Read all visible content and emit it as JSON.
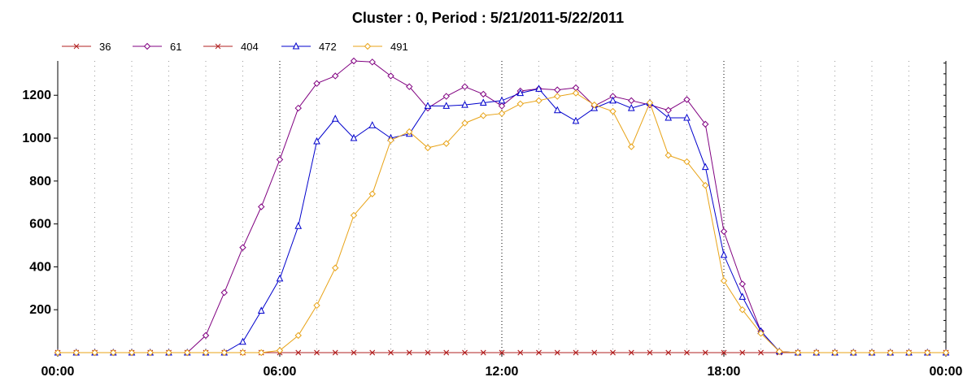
{
  "chart_data": {
    "type": "line",
    "title": "Cluster : 0, Period : 5/21/2011-5/22/2011",
    "xlabel": "",
    "ylabel": "",
    "x_tick_labels": [
      "00:00",
      "06:00",
      "12:00",
      "18:00",
      "00:00"
    ],
    "x_ticks_hours": [
      0,
      6,
      12,
      18,
      24
    ],
    "y_ticks": [
      200,
      400,
      600,
      800,
      1000,
      1200
    ],
    "xlim": [
      0,
      24
    ],
    "ylim": [
      0,
      1360
    ],
    "grid": "dotted vertical every hour",
    "legend_position": "top-left",
    "series": [
      {
        "name": "36",
        "color": "#b22222",
        "marker": "x",
        "x": [
          0,
          0.5,
          1,
          1.5,
          2,
          2.5,
          3,
          3.5,
          4,
          4.5,
          5,
          5.5,
          6,
          6.5,
          7,
          7.5,
          8,
          8.5,
          9,
          9.5,
          10,
          10.5,
          11,
          11.5,
          12,
          12.5,
          13,
          13.5,
          14,
          14.5,
          15,
          15.5,
          16,
          16.5,
          17,
          17.5,
          18,
          18.5,
          19,
          19.5,
          20,
          20.5,
          21,
          21.5,
          22,
          22.5,
          23,
          23.5,
          24
        ],
        "y": [
          0,
          0,
          0,
          0,
          0,
          0,
          0,
          0,
          0,
          0,
          0,
          0,
          0,
          0,
          0,
          0,
          0,
          0,
          0,
          0,
          0,
          0,
          0,
          0,
          0,
          0,
          0,
          0,
          0,
          0,
          0,
          0,
          0,
          0,
          0,
          0,
          0,
          0,
          0,
          0,
          0,
          0,
          0,
          0,
          0,
          0,
          0,
          0,
          0
        ]
      },
      {
        "name": "61",
        "color": "#800080",
        "marker": "diamond",
        "x": [
          0,
          0.5,
          1,
          1.5,
          2,
          2.5,
          3,
          3.5,
          4,
          4.5,
          5,
          5.5,
          6,
          6.5,
          7,
          7.5,
          8,
          8.5,
          9,
          9.5,
          10,
          10.5,
          11,
          11.5,
          12,
          12.5,
          13,
          13.5,
          14,
          14.5,
          15,
          15.5,
          16,
          16.5,
          17,
          17.5,
          18,
          18.5,
          19,
          19.5,
          20,
          20.5,
          21,
          21.5,
          22,
          22.5,
          23,
          23.5,
          24
        ],
        "y": [
          0,
          0,
          0,
          0,
          0,
          0,
          0,
          0,
          80,
          280,
          490,
          680,
          900,
          1140,
          1255,
          1290,
          1360,
          1355,
          1290,
          1240,
          1140,
          1195,
          1240,
          1205,
          1150,
          1220,
          1230,
          1225,
          1235,
          1150,
          1195,
          1175,
          1155,
          1130,
          1180,
          1065,
          565,
          320,
          100,
          5,
          0,
          0,
          0,
          0,
          0,
          0,
          0,
          0,
          0
        ]
      },
      {
        "name": "404",
        "color": "#b22222",
        "marker": "x",
        "x": [
          0,
          0.5,
          1,
          1.5,
          2,
          2.5,
          3,
          3.5,
          4,
          4.5,
          5,
          5.5,
          6,
          6.5,
          7,
          7.5,
          8,
          8.5,
          9,
          9.5,
          10,
          10.5,
          11,
          11.5,
          12,
          12.5,
          13,
          13.5,
          14,
          14.5,
          15,
          15.5,
          16,
          16.5,
          17,
          17.5,
          18,
          18.5,
          19,
          19.5,
          20,
          20.5,
          21,
          21.5,
          22,
          22.5,
          23,
          23.5,
          24
        ],
        "y": [
          0,
          0,
          0,
          0,
          0,
          0,
          0,
          0,
          0,
          0,
          0,
          0,
          0,
          0,
          0,
          0,
          0,
          0,
          0,
          0,
          0,
          0,
          0,
          0,
          0,
          0,
          0,
          0,
          0,
          0,
          0,
          0,
          0,
          0,
          0,
          0,
          0,
          0,
          0,
          0,
          0,
          0,
          0,
          0,
          0,
          0,
          0,
          0,
          0
        ]
      },
      {
        "name": "472",
        "color": "#0000cc",
        "marker": "triangle",
        "x": [
          0,
          0.5,
          1,
          1.5,
          2,
          2.5,
          3,
          3.5,
          4,
          4.5,
          5,
          5.5,
          6,
          6.5,
          7,
          7.5,
          8,
          8.5,
          9,
          9.5,
          10,
          10.5,
          11,
          11.5,
          12,
          12.5,
          13,
          13.5,
          14,
          14.5,
          15,
          15.5,
          16,
          16.5,
          17,
          17.5,
          18,
          18.5,
          19,
          19.5,
          20,
          20.5,
          21,
          21.5,
          22,
          22.5,
          23,
          23.5,
          24
        ],
        "y": [
          0,
          0,
          0,
          0,
          0,
          0,
          0,
          0,
          0,
          0,
          50,
          195,
          345,
          590,
          985,
          1090,
          1000,
          1060,
          1000,
          1020,
          1150,
          1150,
          1155,
          1165,
          1175,
          1210,
          1230,
          1130,
          1080,
          1140,
          1175,
          1140,
          1165,
          1095,
          1095,
          865,
          455,
          260,
          100,
          5,
          0,
          0,
          0,
          0,
          0,
          0,
          0,
          0,
          0
        ]
      },
      {
        "name": "491",
        "color": "#e8a317",
        "marker": "diamond",
        "x": [
          0,
          0.5,
          1,
          1.5,
          2,
          2.5,
          3,
          3.5,
          4,
          4.5,
          5,
          5.5,
          6,
          6.5,
          7,
          7.5,
          8,
          8.5,
          9,
          9.5,
          10,
          10.5,
          11,
          11.5,
          12,
          12.5,
          13,
          13.5,
          14,
          14.5,
          15,
          15.5,
          16,
          16.5,
          17,
          17.5,
          18,
          18.5,
          19,
          19.5,
          20,
          20.5,
          21,
          21.5,
          22,
          22.5,
          23,
          23.5,
          24
        ],
        "y": [
          0,
          0,
          0,
          0,
          0,
          0,
          0,
          0,
          0,
          0,
          0,
          0,
          10,
          80,
          220,
          395,
          640,
          740,
          990,
          1030,
          955,
          975,
          1070,
          1105,
          1115,
          1160,
          1175,
          1195,
          1210,
          1155,
          1125,
          960,
          1165,
          920,
          890,
          780,
          335,
          200,
          90,
          5,
          0,
          0,
          0,
          0,
          0,
          0,
          0,
          0,
          0
        ]
      }
    ]
  }
}
